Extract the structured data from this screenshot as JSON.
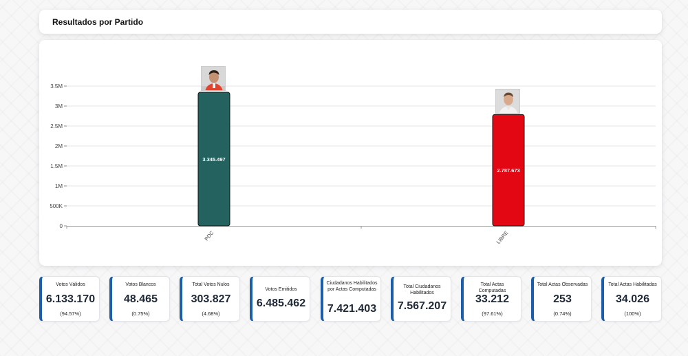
{
  "header": {
    "title": "Resultados por Partido"
  },
  "chart_data": {
    "type": "bar",
    "categories": [
      "PDC",
      "LIBRE"
    ],
    "values": [
      3345497,
      2787673
    ],
    "value_labels": [
      "3.345.497",
      "2.787.673"
    ],
    "bar_colors": [
      "#23625f",
      "#e30613"
    ],
    "ytick_labels": [
      "0",
      "500K",
      "1M",
      "1.5M",
      "2M",
      "2.5M",
      "3M",
      "3.5M"
    ],
    "yticks": [
      0,
      500000,
      1000000,
      1500000,
      2000000,
      2500000,
      3000000,
      3500000
    ],
    "ylim": [
      0,
      3500000
    ],
    "title": "",
    "xlabel": "",
    "ylabel": "",
    "grid": true,
    "legend": "none"
  },
  "stats": [
    {
      "label": "Votos Válidos",
      "value": "6.133.170",
      "pct": "(94.57%)"
    },
    {
      "label": "Votos Blancos",
      "value": "48.465",
      "pct": "(0.75%)"
    },
    {
      "label": "Total Votos Nulos",
      "value": "303.827",
      "pct": "(4.68%)"
    },
    {
      "label": "Votos Emitidos",
      "value": "6.485.462",
      "pct": ""
    },
    {
      "label": "Ciudadanos Habilitados por Actas Computadas",
      "value": "7.421.403",
      "pct": ""
    },
    {
      "label": "Total Ciudadanos Habilitados",
      "value": "7.567.207",
      "pct": ""
    },
    {
      "label": "Total Actas Computadas",
      "value": "33.212",
      "pct": "(97.61%)"
    },
    {
      "label": "Total Actas Observadas",
      "value": "253",
      "pct": "(0.74%)"
    },
    {
      "label": "Total Actas Habilitadas",
      "value": "34.026",
      "pct": "(100%)"
    }
  ],
  "colors": {
    "accent": "#1d5ea8",
    "pdc": "#23625f",
    "libre": "#e30613"
  },
  "icons": [
    "candidate-photo-pdc",
    "candidate-photo-libre"
  ]
}
